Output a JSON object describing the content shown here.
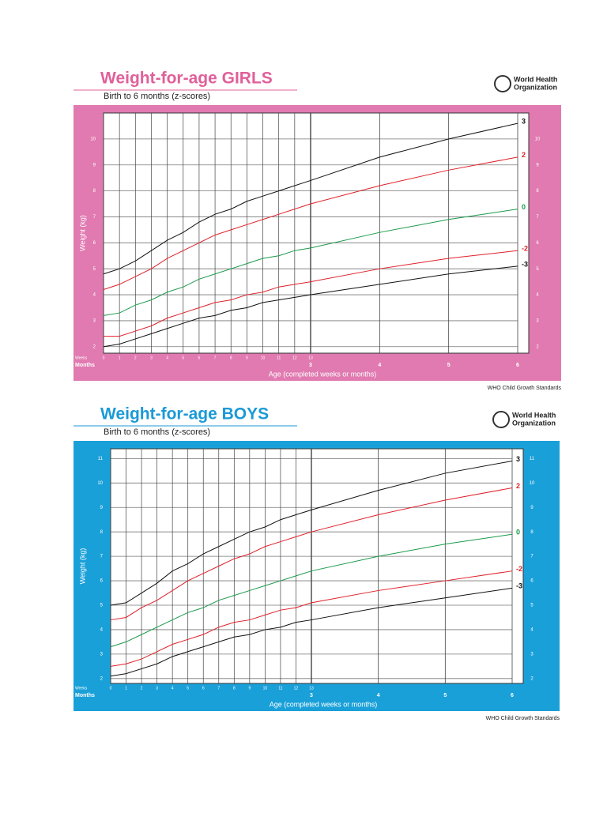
{
  "chart_data": [
    {
      "type": "line",
      "title": "Weight-for-age GIRLS",
      "subtitle": "Birth to 6 months (z-scores)",
      "brand": [
        "World Health",
        "Organization"
      ],
      "footer": "WHO Child Growth Standards",
      "ylabel": "Weight (kg)",
      "xlabel": "Age (completed weeks or months)",
      "weeks_label": "Weeks",
      "months_label": "Months",
      "week_ticks": [
        0,
        1,
        2,
        3,
        4,
        5,
        6,
        7,
        8,
        9,
        10,
        11,
        12,
        13
      ],
      "month_ticks": [
        3,
        4,
        5,
        6
      ],
      "ylim": [
        1.75,
        11
      ],
      "yticks": [
        2,
        3,
        4,
        5,
        6,
        7,
        8,
        9,
        10
      ],
      "panel_color": "#e07ab0",
      "title_color": "#e0609a",
      "series": [
        {
          "name": "3",
          "color": "#111111",
          "values": [
            4.8,
            5.0,
            5.3,
            5.7,
            6.1,
            6.4,
            6.8,
            7.1,
            7.3,
            7.6,
            7.8,
            8.0,
            8.2,
            8.4,
            9.3,
            10.0,
            10.6
          ]
        },
        {
          "name": "2",
          "color": "#e0202a",
          "values": [
            4.2,
            4.4,
            4.7,
            5.0,
            5.4,
            5.7,
            6.0,
            6.3,
            6.5,
            6.7,
            6.9,
            7.1,
            7.3,
            7.5,
            8.2,
            8.8,
            9.3
          ]
        },
        {
          "name": "0",
          "color": "#1a9a4a",
          "values": [
            3.2,
            3.3,
            3.6,
            3.8,
            4.1,
            4.3,
            4.6,
            4.8,
            5.0,
            5.2,
            5.4,
            5.5,
            5.7,
            5.8,
            6.4,
            6.9,
            7.3
          ]
        },
        {
          "name": "-2",
          "color": "#e0202a",
          "values": [
            2.4,
            2.4,
            2.6,
            2.8,
            3.1,
            3.3,
            3.5,
            3.7,
            3.8,
            4.0,
            4.1,
            4.3,
            4.4,
            4.5,
            5.0,
            5.4,
            5.7
          ]
        },
        {
          "name": "-3",
          "color": "#111111",
          "values": [
            2.0,
            2.1,
            2.3,
            2.5,
            2.7,
            2.9,
            3.1,
            3.2,
            3.4,
            3.5,
            3.7,
            3.8,
            3.9,
            4.0,
            4.4,
            4.8,
            5.1
          ]
        }
      ]
    },
    {
      "type": "line",
      "title": "Weight-for-age BOYS",
      "subtitle": "Birth to 6 months (z-scores)",
      "brand": [
        "World Health",
        "Organization"
      ],
      "footer": "WHO Child Growth Standards",
      "ylabel": "Weight (kg)",
      "xlabel": "Age (completed weeks or months)",
      "weeks_label": "Weeks",
      "months_label": "Months",
      "week_ticks": [
        0,
        1,
        2,
        3,
        4,
        5,
        6,
        7,
        8,
        9,
        10,
        11,
        12,
        13
      ],
      "month_ticks": [
        3,
        4,
        5,
        6
      ],
      "ylim": [
        1.8,
        11.4
      ],
      "yticks": [
        2,
        3,
        4,
        5,
        6,
        7,
        8,
        9,
        10,
        11
      ],
      "panel_color": "#1aa0d8",
      "title_color": "#1a9ad6",
      "series": [
        {
          "name": "3",
          "color": "#111111",
          "values": [
            5.0,
            5.1,
            5.5,
            5.9,
            6.4,
            6.7,
            7.1,
            7.4,
            7.7,
            8.0,
            8.2,
            8.5,
            8.7,
            8.9,
            9.7,
            10.4,
            10.9
          ]
        },
        {
          "name": "2",
          "color": "#e0202a",
          "values": [
            4.4,
            4.5,
            4.9,
            5.2,
            5.6,
            6.0,
            6.3,
            6.6,
            6.9,
            7.1,
            7.4,
            7.6,
            7.8,
            8.0,
            8.7,
            9.3,
            9.8
          ]
        },
        {
          "name": "0",
          "color": "#1a9a4a",
          "values": [
            3.3,
            3.5,
            3.8,
            4.1,
            4.4,
            4.7,
            4.9,
            5.2,
            5.4,
            5.6,
            5.8,
            6.0,
            6.2,
            6.4,
            7.0,
            7.5,
            7.9
          ]
        },
        {
          "name": "-2",
          "color": "#e0202a",
          "values": [
            2.5,
            2.6,
            2.8,
            3.1,
            3.4,
            3.6,
            3.8,
            4.1,
            4.3,
            4.4,
            4.6,
            4.8,
            4.9,
            5.1,
            5.6,
            6.0,
            6.4
          ]
        },
        {
          "name": "-3",
          "color": "#111111",
          "values": [
            2.1,
            2.2,
            2.4,
            2.6,
            2.9,
            3.1,
            3.3,
            3.5,
            3.7,
            3.8,
            4.0,
            4.1,
            4.3,
            4.4,
            4.9,
            5.3,
            5.7
          ]
        }
      ]
    }
  ]
}
